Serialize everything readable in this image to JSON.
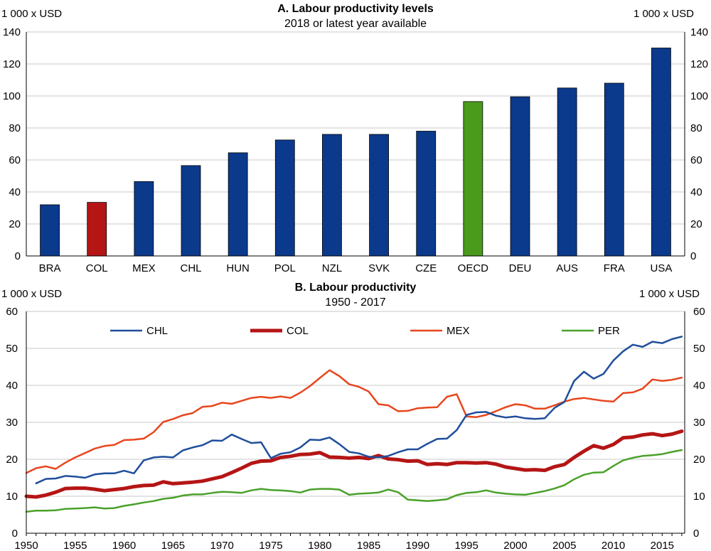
{
  "chart_data": [
    {
      "type": "bar",
      "title": "A. Labour productivity levels",
      "subtitle": "2018 or latest year available",
      "ylabel_left": "1 000 x USD",
      "ylabel_right": "1 000 x USD",
      "ylim": [
        0,
        140
      ],
      "yticks": [
        "0",
        "20",
        "40",
        "60",
        "80",
        "100",
        "120",
        "140"
      ],
      "categories": [
        "BRA",
        "COL",
        "MEX",
        "CHL",
        "HUN",
        "POL",
        "NZL",
        "SVK",
        "CZE",
        "OECD",
        "DEU",
        "AUS",
        "FRA",
        "USA"
      ],
      "values": [
        32,
        33.5,
        46.5,
        56.5,
        64.5,
        72.5,
        76,
        76,
        78,
        96.5,
        99.5,
        105,
        108,
        130
      ],
      "colors": [
        "#0b3a8c",
        "#b51515",
        "#0b3a8c",
        "#0b3a8c",
        "#0b3a8c",
        "#0b3a8c",
        "#0b3a8c",
        "#0b3a8c",
        "#0b3a8c",
        "#4a9a1c",
        "#0b3a8c",
        "#0b3a8c",
        "#0b3a8c",
        "#0b3a8c"
      ],
      "grid": "horizontal"
    },
    {
      "type": "line",
      "title": "B. Labour productivity",
      "subtitle": "1950 - 2017",
      "ylabel_left": "1 000 x USD",
      "ylabel_right": "1 000 x USD",
      "ylim": [
        0,
        60
      ],
      "xlim": [
        1950,
        2017
      ],
      "yticks": [
        "0",
        "10",
        "20",
        "30",
        "40",
        "50",
        "60"
      ],
      "xticks": [
        "1950",
        "1955",
        "1960",
        "1965",
        "1970",
        "1975",
        "1980",
        "1985",
        "1990",
        "1995",
        "2000",
        "2005",
        "2010",
        "2015"
      ],
      "legend_position": "top",
      "grid": "horizontal",
      "series": [
        {
          "name": "CHL",
          "color": "#1f4e9c",
          "width": 2.5,
          "x": [
            1951,
            1952,
            1953,
            1954,
            1955,
            1956,
            1957,
            1958,
            1959,
            1960,
            1961,
            1962,
            1963,
            1964,
            1965,
            1966,
            1967,
            1968,
            1969,
            1970,
            1971,
            1972,
            1973,
            1974,
            1975,
            1976,
            1977,
            1978,
            1979,
            1980,
            1981,
            1982,
            1983,
            1984,
            1985,
            1986,
            1987,
            1988,
            1989,
            1990,
            1991,
            1992,
            1993,
            1994,
            1995,
            1996,
            1997,
            1998,
            1999,
            2000,
            2001,
            2002,
            2003,
            2004,
            2005,
            2006,
            2007,
            2008,
            2009,
            2010,
            2011,
            2012,
            2013,
            2014,
            2015,
            2016,
            2017
          ],
          "values": [
            13.5,
            14.7,
            14.8,
            15.5,
            15.3,
            15.0,
            15.9,
            16.2,
            16.2,
            16.9,
            16.2,
            19.7,
            20.5,
            20.7,
            20.5,
            22.4,
            23.2,
            23.8,
            25.1,
            25.0,
            26.7,
            25.5,
            24.4,
            24.6,
            20.3,
            21.5,
            21.9,
            23.2,
            25.3,
            25.2,
            25.9,
            24.1,
            22.0,
            21.6,
            20.7,
            20.5,
            20.9,
            21.9,
            22.7,
            22.7,
            24.2,
            25.5,
            25.6,
            27.9,
            32.0,
            32.7,
            32.8,
            31.8,
            31.3,
            31.6,
            31.1,
            30.9,
            31.1,
            33.9,
            35.5,
            41.2,
            43.7,
            41.8,
            43.1,
            46.7,
            49.2,
            51.0,
            50.4,
            51.8,
            51.4,
            52.5,
            53.2
          ]
        },
        {
          "name": "COL",
          "color": "#b51515",
          "width": 5,
          "x": [
            1950,
            1951,
            1952,
            1953,
            1954,
            1955,
            1956,
            1957,
            1958,
            1959,
            1960,
            1961,
            1962,
            1963,
            1964,
            1965,
            1966,
            1967,
            1968,
            1969,
            1970,
            1971,
            1972,
            1973,
            1974,
            1975,
            1976,
            1977,
            1978,
            1979,
            1980,
            1981,
            1982,
            1983,
            1984,
            1985,
            1986,
            1987,
            1988,
            1989,
            1990,
            1991,
            1992,
            1993,
            1994,
            1995,
            1996,
            1997,
            1998,
            1999,
            2000,
            2001,
            2002,
            2003,
            2004,
            2005,
            2006,
            2007,
            2008,
            2009,
            2010,
            2011,
            2012,
            2013,
            2014,
            2015,
            2016,
            2017
          ],
          "values": [
            10.0,
            9.8,
            10.3,
            11.1,
            12.1,
            12.2,
            12.2,
            11.9,
            11.5,
            11.8,
            12.1,
            12.6,
            12.9,
            13.0,
            13.9,
            13.4,
            13.6,
            13.8,
            14.1,
            14.7,
            15.3,
            16.4,
            17.6,
            18.9,
            19.5,
            19.6,
            20.5,
            20.8,
            21.3,
            21.4,
            21.8,
            20.6,
            20.5,
            20.3,
            20.5,
            20.2,
            21.0,
            20.1,
            19.9,
            19.5,
            19.6,
            18.6,
            18.8,
            18.6,
            19.1,
            19.1,
            19.0,
            19.1,
            18.7,
            17.9,
            17.5,
            17.1,
            17.2,
            17.0,
            18.0,
            18.6,
            20.5,
            22.2,
            23.7,
            23.0,
            24.0,
            25.8,
            26.0,
            26.6,
            26.9,
            26.4,
            26.8,
            27.6
          ]
        },
        {
          "name": "MEX",
          "color": "#e8461e",
          "width": 2.5,
          "x": [
            1950,
            1951,
            1952,
            1953,
            1954,
            1955,
            1956,
            1957,
            1958,
            1959,
            1960,
            1961,
            1962,
            1963,
            1964,
            1965,
            1966,
            1967,
            1968,
            1969,
            1970,
            1971,
            1972,
            1973,
            1974,
            1975,
            1976,
            1977,
            1978,
            1979,
            1980,
            1981,
            1982,
            1983,
            1984,
            1985,
            1986,
            1987,
            1988,
            1989,
            1990,
            1991,
            1992,
            1993,
            1994,
            1995,
            1996,
            1997,
            1998,
            1999,
            2000,
            2001,
            2002,
            2003,
            2004,
            2005,
            2006,
            2007,
            2008,
            2009,
            2010,
            2011,
            2012,
            2013,
            2014,
            2015,
            2016,
            2017
          ],
          "values": [
            16.3,
            17.6,
            18.1,
            17.4,
            19.1,
            20.5,
            21.7,
            22.9,
            23.6,
            23.9,
            25.2,
            25.3,
            25.6,
            27.3,
            30.1,
            30.9,
            31.9,
            32.5,
            34.2,
            34.4,
            35.3,
            35.0,
            35.8,
            36.6,
            36.9,
            36.6,
            37.0,
            36.6,
            38.0,
            39.8,
            42.0,
            44.1,
            42.5,
            40.3,
            39.6,
            38.3,
            34.9,
            34.6,
            33.0,
            33.1,
            33.8,
            34.0,
            34.1,
            36.9,
            37.6,
            31.6,
            31.4,
            32.0,
            33.0,
            34.1,
            34.9,
            34.6,
            33.7,
            33.7,
            34.6,
            35.6,
            36.3,
            36.6,
            36.2,
            35.8,
            35.6,
            37.9,
            38.1,
            39.1,
            41.6,
            41.2,
            41.5,
            42.1
          ]
        },
        {
          "name": "PER",
          "color": "#4aa12a",
          "width": 2.5,
          "x": [
            1950,
            1951,
            1952,
            1953,
            1954,
            1955,
            1956,
            1957,
            1958,
            1959,
            1960,
            1961,
            1962,
            1963,
            1964,
            1965,
            1966,
            1967,
            1968,
            1969,
            1970,
            1971,
            1972,
            1973,
            1974,
            1975,
            1976,
            1977,
            1978,
            1979,
            1980,
            1981,
            1982,
            1983,
            1984,
            1985,
            1986,
            1987,
            1988,
            1989,
            1990,
            1991,
            1992,
            1993,
            1994,
            1995,
            1996,
            1997,
            1998,
            1999,
            2000,
            2001,
            2002,
            2003,
            2004,
            2005,
            2006,
            2007,
            2008,
            2009,
            2010,
            2011,
            2012,
            2013,
            2014,
            2015,
            2016,
            2017
          ],
          "values": [
            5.8,
            6.1,
            6.1,
            6.2,
            6.6,
            6.7,
            6.8,
            7.0,
            6.7,
            6.8,
            7.4,
            7.8,
            8.3,
            8.7,
            9.3,
            9.6,
            10.2,
            10.5,
            10.5,
            10.9,
            11.2,
            11.1,
            10.9,
            11.6,
            12.0,
            11.7,
            11.6,
            11.4,
            11.0,
            11.8,
            12.0,
            12.0,
            11.8,
            10.4,
            10.7,
            10.8,
            11.0,
            11.8,
            11.1,
            9.1,
            8.9,
            8.7,
            8.9,
            9.2,
            10.3,
            10.9,
            11.1,
            11.6,
            11.0,
            10.7,
            10.5,
            10.4,
            10.9,
            11.4,
            12.1,
            13.0,
            14.6,
            15.8,
            16.4,
            16.5,
            18.2,
            19.7,
            20.4,
            20.9,
            21.1,
            21.4,
            22.0,
            22.5
          ]
        }
      ]
    }
  ]
}
